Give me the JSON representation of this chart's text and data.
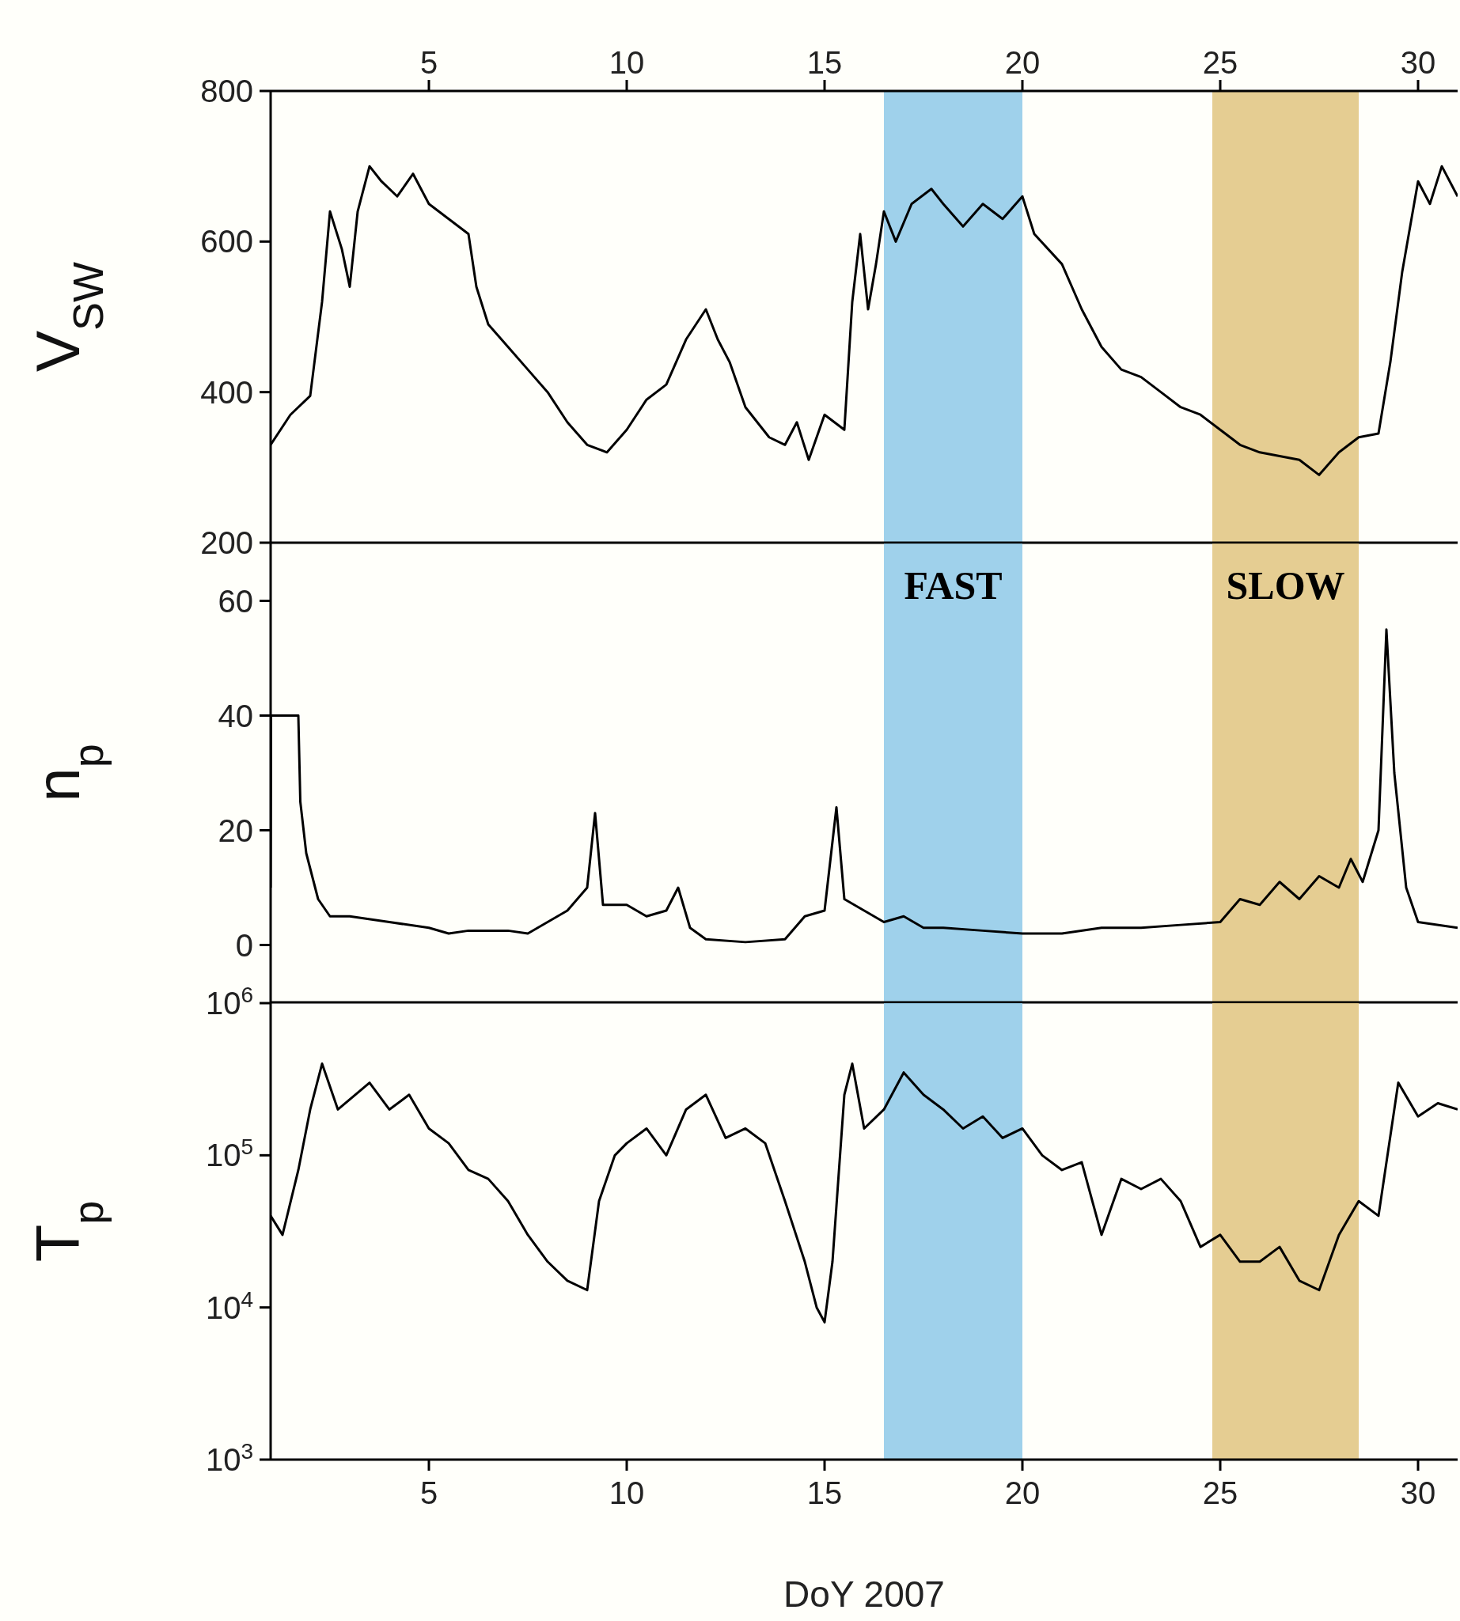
{
  "chart_data": [
    {
      "type": "line",
      "ylabel": "V$_{SW}$",
      "x": [
        1.0,
        1.5,
        2.0,
        2.3,
        2.5,
        2.8,
        3.0,
        3.2,
        3.5,
        3.8,
        4.2,
        4.6,
        5.0,
        5.5,
        6.0,
        6.2,
        6.5,
        7.0,
        7.5,
        8.0,
        8.5,
        9.0,
        9.5,
        10.0,
        10.5,
        11.0,
        11.5,
        12.0,
        12.3,
        12.6,
        13.0,
        13.3,
        13.6,
        14.0,
        14.3,
        14.6,
        15.0,
        15.5,
        15.7,
        15.9,
        16.1,
        16.3,
        16.5,
        16.8,
        17.2,
        17.7,
        18.0,
        18.5,
        19.0,
        19.5,
        20.0,
        20.3,
        21.0,
        21.5,
        22.0,
        22.5,
        23.0,
        23.5,
        24.0,
        24.5,
        25.0,
        25.5,
        26.0,
        26.5,
        27.0,
        27.5,
        28.0,
        28.5,
        29.0,
        29.3,
        29.6,
        30.0,
        30.3,
        30.6,
        31.0
      ],
      "series": [
        {
          "color": "#000000",
          "values": [
            330,
            370,
            395,
            520,
            640,
            590,
            540,
            640,
            700,
            680,
            660,
            690,
            650,
            630,
            610,
            540,
            490,
            460,
            430,
            400,
            360,
            330,
            320,
            350,
            390,
            410,
            470,
            510,
            470,
            440,
            380,
            360,
            340,
            330,
            360,
            310,
            370,
            350,
            520,
            610,
            510,
            570,
            640,
            600,
            650,
            670,
            650,
            620,
            650,
            630,
            660,
            610,
            570,
            510,
            460,
            430,
            420,
            400,
            380,
            370,
            350,
            330,
            320,
            315,
            310,
            290,
            320,
            340,
            345,
            440,
            560,
            680,
            650,
            700,
            660
          ]
        }
      ],
      "xlim": [
        1,
        31
      ],
      "ylim": [
        200,
        800
      ],
      "yticks": [
        200,
        400,
        600,
        800
      ],
      "x2lim": [
        1,
        31
      ],
      "x2ticks": [
        5,
        10,
        15,
        20,
        25,
        30
      ],
      "tick_labels": "y",
      "bands": [
        {
          "axis": "x",
          "from": 16.5,
          "to": 20,
          "color": "#8ec9e8"
        },
        {
          "axis": "x",
          "from": 24.8,
          "to": 28.5,
          "color": "#e0c47f"
        }
      ]
    },
    {
      "type": "line",
      "ylabel": "n$_{p}$",
      "x": [
        1.0,
        1.01,
        1.7,
        1.75,
        1.9,
        2.2,
        2.5,
        3,
        4,
        5,
        5.5,
        6,
        7,
        7.5,
        8,
        8.5,
        9,
        9.2,
        9.4,
        10,
        10.5,
        11,
        11.3,
        11.6,
        12,
        13,
        14,
        14.5,
        15,
        15.3,
        15.5,
        16,
        16.5,
        17,
        17.5,
        18,
        19,
        20,
        21,
        22,
        23,
        24,
        25,
        25.5,
        26,
        26.5,
        27,
        27.5,
        28,
        28.3,
        28.6,
        29,
        29.2,
        29.4,
        29.7,
        30,
        31
      ],
      "series": [
        {
          "color": "#000000",
          "values": [
            10,
            40,
            40,
            25,
            16,
            8,
            5,
            5,
            4,
            3,
            2,
            2.5,
            2.5,
            2,
            4,
            6,
            10,
            23,
            7,
            7,
            5,
            6,
            10,
            3,
            1,
            0.5,
            1,
            5,
            6,
            24,
            8,
            6,
            4,
            5,
            3,
            3,
            2.5,
            2,
            2,
            3,
            3,
            3.5,
            4,
            8,
            7,
            11,
            8,
            12,
            10,
            15,
            11,
            20,
            55,
            30,
            10,
            4,
            3
          ]
        }
      ],
      "xlim": [
        1,
        31
      ],
      "ylim": [
        -10,
        70
      ],
      "yticks": [
        0,
        20,
        40,
        60
      ],
      "tick_labels": "y",
      "annotations": [
        "FAST",
        "SLOW"
      ],
      "bands": [
        {
          "axis": "x",
          "from": 16.5,
          "to": 20,
          "color": "#8ec9e8"
        },
        {
          "axis": "x",
          "from": 24.8,
          "to": 28.5,
          "color": "#e0c47f"
        }
      ]
    },
    {
      "type": "line",
      "ylabel": "T$_{p}$",
      "xlabel": "DoY 2007",
      "log": "y",
      "x": [
        1.0,
        1.3,
        1.7,
        2.0,
        2.3,
        2.7,
        3.5,
        4,
        4.5,
        5,
        5.5,
        6,
        6.5,
        7,
        7.5,
        8,
        8.5,
        9,
        9.3,
        9.7,
        10,
        10.5,
        11,
        11.5,
        12,
        12.5,
        13,
        13.5,
        14,
        14.5,
        14.8,
        15,
        15.2,
        15.5,
        15.7,
        16,
        16.5,
        17,
        17.5,
        18,
        18.5,
        19,
        19.5,
        20,
        20.5,
        21,
        21.5,
        22,
        22.5,
        23,
        23.5,
        24,
        24.5,
        25,
        25.5,
        26,
        26.5,
        27,
        27.5,
        28,
        28.5,
        29,
        29.5,
        30,
        30.5,
        31
      ],
      "series": [
        {
          "color": "#000000",
          "values": [
            40000,
            30000,
            80000,
            200000,
            400000,
            200000,
            300000,
            200000,
            250000,
            150000,
            120000,
            80000,
            70000,
            50000,
            30000,
            20000,
            15000,
            13000,
            50000,
            100000,
            120000,
            150000,
            100000,
            200000,
            250000,
            130000,
            150000,
            120000,
            50000,
            20000,
            10000,
            8000,
            20000,
            250000,
            400000,
            150000,
            200000,
            350000,
            250000,
            200000,
            150000,
            180000,
            130000,
            150000,
            100000,
            80000,
            90000,
            30000,
            70000,
            60000,
            70000,
            50000,
            25000,
            30000,
            20000,
            20000,
            25000,
            15000,
            13000,
            30000,
            50000,
            40000,
            300000,
            180000,
            220000,
            200000
          ]
        }
      ],
      "xlim": [
        1,
        31
      ],
      "xticks": [
        5,
        10,
        15,
        20,
        25,
        30
      ],
      "ylim": [
        1000,
        1000000
      ],
      "yticks": [
        {
          "value": 1000,
          "label": "10$^{3}$"
        },
        {
          "value": 10000,
          "label": "10$^{4}$"
        },
        {
          "value": 100000,
          "label": "10$^{5}$"
        },
        {
          "value": 1000000,
          "label": "10$^{6}$"
        }
      ],
      "bands": [
        {
          "axis": "x",
          "from": 16.5,
          "to": 20,
          "color": "#8ec9e8"
        },
        {
          "axis": "x",
          "from": 24.8,
          "to": 28.5,
          "color": "#e0c47f"
        }
      ]
    }
  ]
}
